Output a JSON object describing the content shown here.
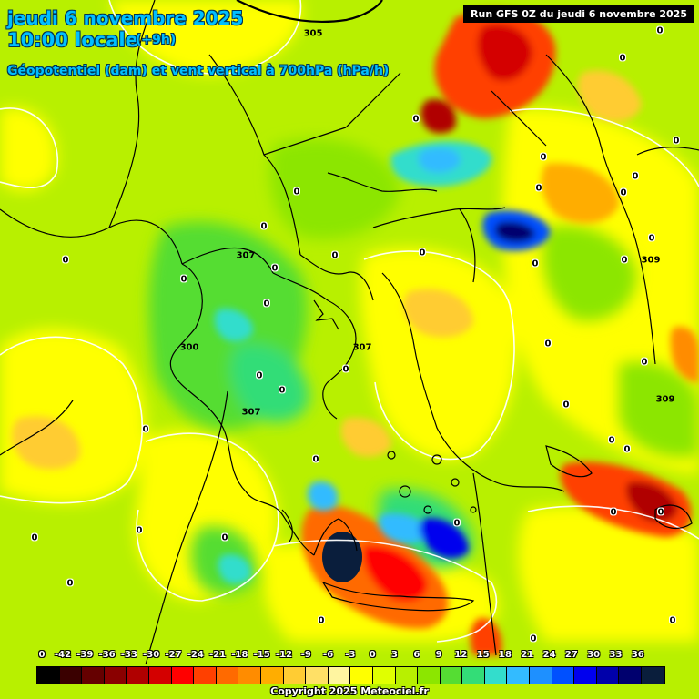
{
  "header": {
    "date_line": "jeudi 6 novembre 2025",
    "hour_line": "10:00 locale",
    "offset": "(+9h)",
    "parameter": "Géopotentiel (dam) et vent vertical à 700hPa (hPa/h)",
    "run_info": "Run GFS 0Z du jeudi 6 novembre 2025"
  },
  "map": {
    "region": "Greece / Aegean Sea / Crete / western Turkey",
    "geopotential_contours": [
      {
        "value": "305"
      },
      {
        "value": "307"
      },
      {
        "value": "307"
      },
      {
        "value": "307"
      },
      {
        "value": "309"
      },
      {
        "value": "309"
      },
      {
        "value": "300"
      }
    ],
    "zero_labels": [
      "0",
      "0",
      "0",
      "0",
      "0",
      "0",
      "0",
      "0",
      "0",
      "0",
      "0",
      "0",
      "0",
      "0",
      "0",
      "0",
      "0",
      "0",
      "0",
      "0",
      "0",
      "0",
      "0",
      "0",
      "0",
      "0",
      "0",
      "0",
      "0",
      "0",
      "0",
      "0",
      "0",
      "0",
      "0",
      "0",
      "0",
      "0",
      "0"
    ]
  },
  "legend": {
    "ticks": [
      "0",
      "-42",
      "-39",
      "-36",
      "-33",
      "-30",
      "-27",
      "-24",
      "-21",
      "-18",
      "-15",
      "-12",
      "-9",
      "-6",
      "-3",
      "0",
      "3",
      "6",
      "9",
      "12",
      "15",
      "18",
      "21",
      "24",
      "27",
      "30",
      "33",
      "36"
    ],
    "colors": [
      "#000000",
      "#3a0000",
      "#650000",
      "#8a0000",
      "#b00000",
      "#d40000",
      "#ff0000",
      "#ff4000",
      "#ff6a00",
      "#ff8c00",
      "#ffad00",
      "#ffcc33",
      "#ffe066",
      "#fff5a0",
      "#ffff00",
      "#e0ff00",
      "#b8f000",
      "#8ce600",
      "#55dd33",
      "#33dd77",
      "#33ddcc",
      "#33bbff",
      "#1e90ff",
      "#0050ff",
      "#0000ee",
      "#0000aa",
      "#00006e",
      "#0a1e3c"
    ]
  },
  "footer": {
    "copyright": "Copyright 2025 Meteociel.fr"
  }
}
